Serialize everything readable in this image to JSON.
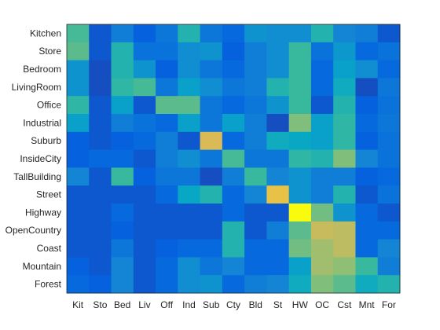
{
  "chart_data": {
    "type": "heatmap",
    "title": "",
    "xlabel": "",
    "ylabel": "",
    "row_labels": [
      "Kitchen",
      "Store",
      "Bedroom",
      "LivingRoom",
      "Office",
      "Industrial",
      "Suburb",
      "InsideCity",
      "TallBuilding",
      "Street",
      "Highway",
      "OpenCountry",
      "Coast",
      "Mountain",
      "Forest"
    ],
    "col_labels": [
      "Kit",
      "Sto",
      "Bed",
      "Liv",
      "Off",
      "Ind",
      "Sub",
      "Cty",
      "Bld",
      "St",
      "HW",
      "OC",
      "Cst",
      "Mnt",
      "For"
    ],
    "values": [
      [
        0.52,
        0.1,
        0.22,
        0.12,
        0.2,
        0.45,
        0.2,
        0.15,
        0.3,
        0.28,
        0.28,
        0.45,
        0.25,
        0.22,
        0.1
      ],
      [
        0.55,
        0.1,
        0.45,
        0.18,
        0.18,
        0.28,
        0.3,
        0.12,
        0.22,
        0.28,
        0.5,
        0.18,
        0.32,
        0.15,
        0.18
      ],
      [
        0.3,
        0.08,
        0.45,
        0.3,
        0.12,
        0.28,
        0.2,
        0.15,
        0.22,
        0.28,
        0.5,
        0.15,
        0.35,
        0.28,
        0.15
      ],
      [
        0.3,
        0.08,
        0.48,
        0.52,
        0.2,
        0.35,
        0.28,
        0.2,
        0.22,
        0.45,
        0.5,
        0.15,
        0.4,
        0.08,
        0.2
      ],
      [
        0.48,
        0.1,
        0.35,
        0.1,
        0.55,
        0.55,
        0.2,
        0.15,
        0.2,
        0.3,
        0.5,
        0.1,
        0.45,
        0.12,
        0.18
      ],
      [
        0.35,
        0.1,
        0.22,
        0.18,
        0.15,
        0.35,
        0.2,
        0.35,
        0.22,
        0.08,
        0.6,
        0.35,
        0.48,
        0.15,
        0.2
      ],
      [
        0.12,
        0.1,
        0.12,
        0.15,
        0.22,
        0.1,
        0.75,
        0.15,
        0.22,
        0.4,
        0.38,
        0.35,
        0.48,
        0.12,
        0.18
      ],
      [
        0.12,
        0.15,
        0.15,
        0.1,
        0.22,
        0.28,
        0.2,
        0.52,
        0.2,
        0.2,
        0.48,
        0.45,
        0.6,
        0.25,
        0.18
      ],
      [
        0.25,
        0.1,
        0.5,
        0.12,
        0.2,
        0.2,
        0.08,
        0.22,
        0.5,
        0.25,
        0.3,
        0.22,
        0.22,
        0.12,
        0.15
      ],
      [
        0.1,
        0.1,
        0.1,
        0.1,
        0.15,
        0.38,
        0.45,
        0.15,
        0.25,
        0.8,
        0.3,
        0.22,
        0.45,
        0.1,
        0.18
      ],
      [
        0.1,
        0.1,
        0.15,
        0.1,
        0.1,
        0.1,
        0.1,
        0.15,
        0.1,
        0.1,
        1.0,
        0.58,
        0.3,
        0.15,
        0.1
      ],
      [
        0.1,
        0.1,
        0.12,
        0.1,
        0.1,
        0.1,
        0.1,
        0.45,
        0.1,
        0.22,
        0.55,
        0.72,
        0.7,
        0.15,
        0.15
      ],
      [
        0.1,
        0.1,
        0.2,
        0.1,
        0.12,
        0.15,
        0.15,
        0.45,
        0.15,
        0.15,
        0.58,
        0.65,
        0.7,
        0.15,
        0.25
      ],
      [
        0.12,
        0.1,
        0.25,
        0.1,
        0.15,
        0.28,
        0.2,
        0.25,
        0.15,
        0.15,
        0.35,
        0.65,
        0.62,
        0.5,
        0.22
      ],
      [
        0.15,
        0.12,
        0.25,
        0.1,
        0.15,
        0.28,
        0.3,
        0.15,
        0.22,
        0.25,
        0.4,
        0.6,
        0.55,
        0.4,
        0.45
      ]
    ],
    "colormap": "parula",
    "colormap_stops": [
      "#352a87",
      "#0363e1",
      "#1485d4",
      "#06a7c6",
      "#38b99e",
      "#92bf73",
      "#d9ba56",
      "#fcce2e",
      "#f9fb0e"
    ],
    "grid": false,
    "legend": "none",
    "colorbar": false
  }
}
